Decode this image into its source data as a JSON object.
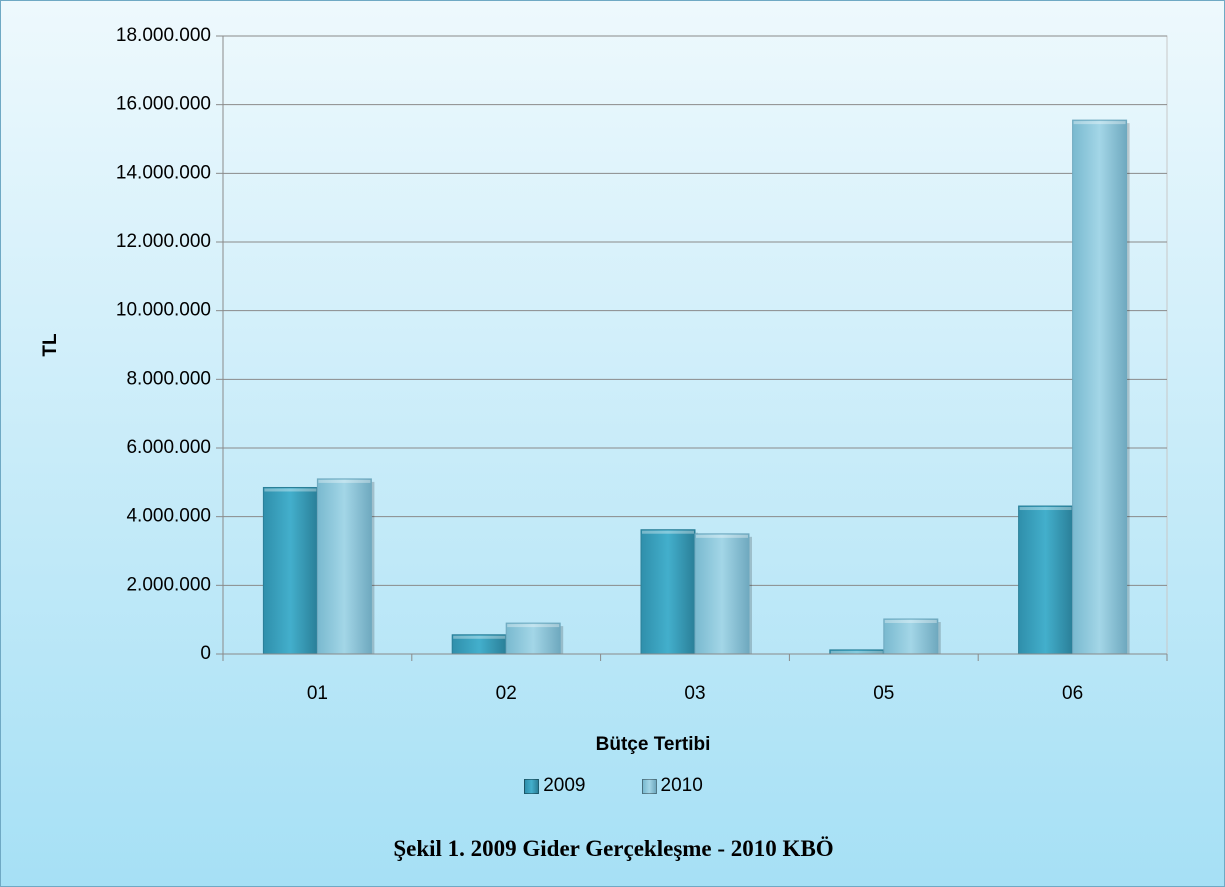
{
  "chart_data": {
    "type": "bar",
    "categories": [
      "01",
      "02",
      "03",
      "05",
      "06"
    ],
    "series": [
      {
        "name": "2009",
        "values": [
          4850000,
          560000,
          3620000,
          120000,
          4310000
        ],
        "color": "#3aa3c0"
      },
      {
        "name": "2010",
        "values": [
          5100000,
          900000,
          3500000,
          1020000,
          15550000
        ],
        "color": "#8ec9dd"
      }
    ],
    "xlabel": "Bütçe Tertibi",
    "ylabel": "TL",
    "ylim": [
      0,
      18000000
    ],
    "y_ticks": [
      "0",
      "2.000.000",
      "4.000.000",
      "6.000.000",
      "8.000.000",
      "10.000.000",
      "12.000.000",
      "14.000.000",
      "16.000.000",
      "18.000.000"
    ],
    "grid": true,
    "legend_position": "bottom"
  },
  "caption": "Şekil 1. 2009 Gider Gerçekleşme - 2010 KBÖ"
}
